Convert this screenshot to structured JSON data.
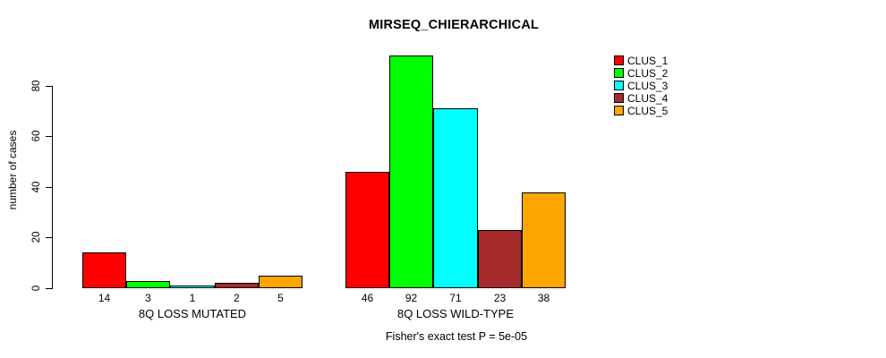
{
  "chart_data": {
    "type": "bar",
    "title": "MIRSEQ_CHIERARCHICAL",
    "ylabel": "number of cases",
    "xlabel": "",
    "yticks": [
      0,
      20,
      40,
      60,
      80
    ],
    "ylim": [
      0,
      92
    ],
    "grid": false,
    "legend_position": "top-right",
    "value_labels_shown": true,
    "categories": [
      "8Q LOSS MUTATED",
      "8Q LOSS WILD-TYPE"
    ],
    "series": [
      {
        "name": "CLUS_1",
        "color": "#ff0000",
        "values": [
          14,
          46
        ]
      },
      {
        "name": "CLUS_2",
        "color": "#00ff00",
        "values": [
          3,
          92
        ]
      },
      {
        "name": "CLUS_3",
        "color": "#00ffff",
        "values": [
          1,
          71
        ]
      },
      {
        "name": "CLUS_4",
        "color": "#a52a2a",
        "values": [
          2,
          23
        ]
      },
      {
        "name": "CLUS_5",
        "color": "#ffa500",
        "values": [
          5,
          38
        ]
      }
    ],
    "annotation": "Fisher's exact test P = 5e-05"
  }
}
